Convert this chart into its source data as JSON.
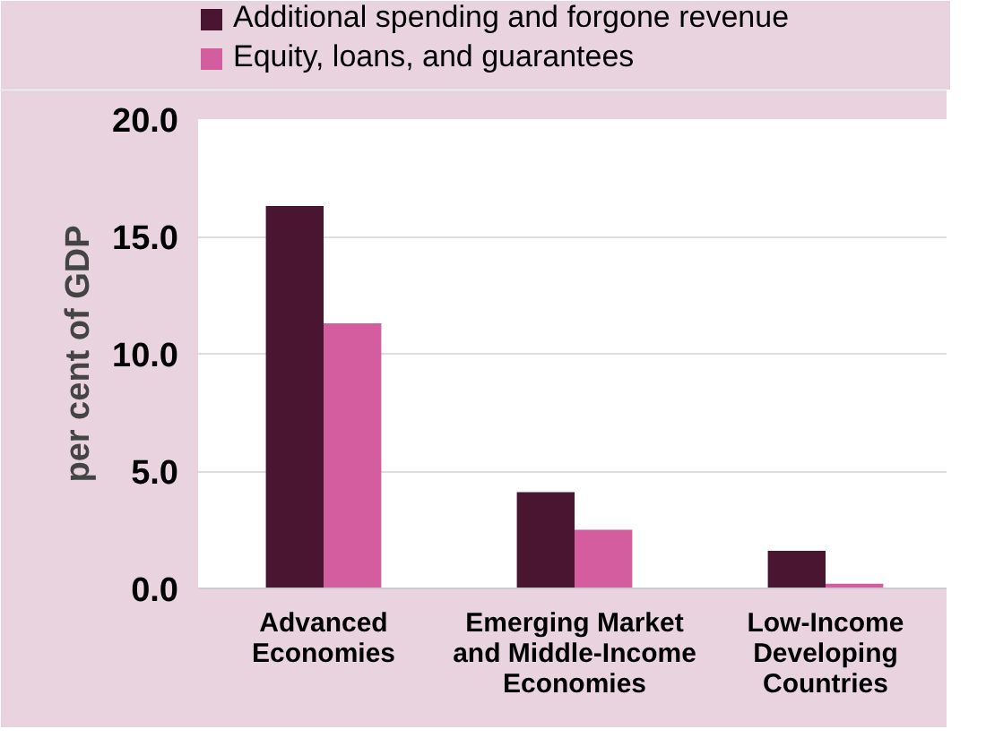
{
  "chart_data": {
    "type": "bar",
    "ylabel": "per cent of GDP",
    "categories": [
      "Advanced\nEconomies",
      "Emerging Market\nand Middle-Income\nEconomies",
      "Low-Income\nDeveloping\nCountries"
    ],
    "series": [
      {
        "name": "Additional spending and forgone revenue",
        "color": "#4a1530",
        "values": [
          16.3,
          4.1,
          1.6
        ]
      },
      {
        "name": "Equity, loans, and guarantees",
        "color": "#d45d9f",
        "values": [
          11.3,
          2.5,
          0.2
        ]
      }
    ],
    "ylim": [
      0,
      20
    ],
    "yticks": [
      {
        "value": 0,
        "label": "0.0"
      },
      {
        "value": 5,
        "label": "5.0"
      },
      {
        "value": 10,
        "label": "10.0"
      },
      {
        "value": 15,
        "label": "15.0"
      },
      {
        "value": 20,
        "label": "20.0"
      }
    ],
    "grid": "y",
    "legend": "top"
  }
}
